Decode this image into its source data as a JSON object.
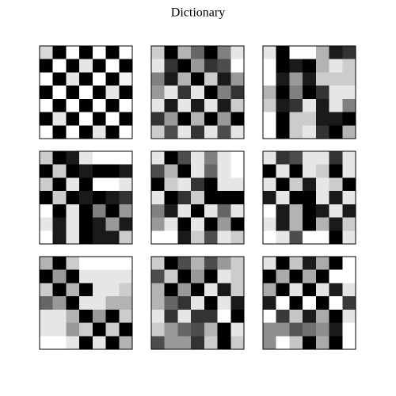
{
  "title": "Dictionary",
  "chart_data": [
    {
      "type": "heatmap",
      "colormap": "gray",
      "values": [
        [
          0.85,
          0.0,
          1.0,
          0.0,
          1.0,
          0.0,
          1.0
        ],
        [
          0.0,
          1.0,
          0.0,
          0.9,
          0.0,
          1.0,
          0.0
        ],
        [
          1.0,
          0.0,
          0.9,
          0.0,
          1.0,
          0.0,
          0.95
        ],
        [
          0.0,
          1.0,
          0.0,
          1.0,
          0.0,
          0.9,
          0.0
        ],
        [
          1.0,
          0.0,
          1.0,
          0.0,
          1.0,
          0.0,
          1.0
        ],
        [
          0.0,
          0.9,
          0.0,
          1.0,
          0.0,
          1.0,
          0.0
        ],
        [
          1.0,
          0.0,
          1.0,
          0.0,
          0.9,
          0.0,
          1.0
        ]
      ]
    },
    {
      "type": "heatmap",
      "colormap": "gray",
      "values": [
        [
          0.8,
          0.0,
          0.7,
          0.4,
          0.0,
          0.5,
          0.9
        ],
        [
          0.9,
          0.2,
          0.0,
          0.6,
          0.2,
          0.3,
          1.0
        ],
        [
          0.5,
          0.1,
          0.7,
          0.0,
          0.8,
          0.1,
          0.6
        ],
        [
          0.6,
          0.9,
          0.2,
          0.9,
          0.0,
          0.5,
          0.2
        ],
        [
          0.9,
          0.1,
          0.9,
          0.1,
          0.9,
          0.1,
          0.8
        ],
        [
          0.2,
          0.6,
          0.0,
          0.7,
          0.0,
          0.6,
          0.0
        ],
        [
          0.8,
          0.3,
          0.9,
          0.2,
          0.9,
          0.3,
          0.9
        ]
      ]
    },
    {
      "type": "heatmap",
      "colormap": "gray",
      "values": [
        [
          0.9,
          0.0,
          1.0,
          1.0,
          0.7,
          0.1,
          0.2
        ],
        [
          1.0,
          0.0,
          0.1,
          0.0,
          0.7,
          0.9,
          0.8
        ],
        [
          1.0,
          0.1,
          0.6,
          0.1,
          0.8,
          0.8,
          0.8
        ],
        [
          0.7,
          0.0,
          0.5,
          0.0,
          0.2,
          0.9,
          0.9
        ],
        [
          0.8,
          0.1,
          0.2,
          0.9,
          0.1,
          0.9,
          0.5
        ],
        [
          1.0,
          0.0,
          0.8,
          0.8,
          0.1,
          0.1,
          0.0
        ],
        [
          1.0,
          0.0,
          0.8,
          0.9,
          0.2,
          0.0,
          0.7
        ]
      ]
    },
    {
      "type": "heatmap",
      "colormap": "gray",
      "values": [
        [
          0.8,
          0.0,
          0.1,
          0.9,
          1.0,
          1.0,
          1.0
        ],
        [
          0.0,
          0.8,
          0.0,
          0.1,
          0.0,
          0.0,
          0.1
        ],
        [
          0.8,
          0.0,
          0.9,
          0.0,
          1.0,
          1.0,
          0.9
        ],
        [
          0.0,
          0.8,
          0.0,
          0.1,
          0.0,
          0.1,
          0.2
        ],
        [
          1.0,
          0.0,
          0.9,
          0.0,
          0.5,
          0.0,
          0.6
        ],
        [
          0.9,
          0.1,
          0.9,
          0.0,
          0.1,
          0.6,
          0.1
        ],
        [
          1.0,
          0.1,
          0.9,
          0.0,
          0.1,
          0.1,
          0.8
        ]
      ]
    },
    {
      "type": "heatmap",
      "colormap": "gray",
      "values": [
        [
          0.9,
          0.0,
          0.3,
          0.9,
          0.5,
          0.9,
          1.0
        ],
        [
          0.3,
          0.7,
          0.0,
          0.9,
          0.4,
          0.9,
          1.0
        ],
        [
          0.0,
          0.8,
          0.9,
          0.2,
          0.0,
          0.9,
          0.9
        ],
        [
          0.9,
          0.0,
          0.2,
          0.8,
          0.0,
          0.0,
          0.0
        ],
        [
          0.5,
          0.1,
          0.9,
          0.0,
          0.9,
          0.4,
          0.9
        ],
        [
          0.6,
          0.9,
          0.0,
          0.9,
          0.0,
          0.6,
          0.0
        ],
        [
          1.0,
          1.0,
          0.1,
          0.8,
          0.3,
          0.9,
          0.8
        ]
      ]
    },
    {
      "type": "heatmap",
      "colormap": "gray",
      "values": [
        [
          0.9,
          0.2,
          0.3,
          0.9,
          0.9,
          0.2,
          0.9
        ],
        [
          0.0,
          0.9,
          0.0,
          0.9,
          0.8,
          0.0,
          0.9
        ],
        [
          0.9,
          0.0,
          0.8,
          0.1,
          0.9,
          0.8,
          0.0
        ],
        [
          0.1,
          0.9,
          0.0,
          0.0,
          0.9,
          0.1,
          0.9
        ],
        [
          1.0,
          0.1,
          0.7,
          0.0,
          0.1,
          0.9,
          0.1
        ],
        [
          0.9,
          0.1,
          0.7,
          0.0,
          0.7,
          0.1,
          0.8
        ],
        [
          1.0,
          0.9,
          0.3,
          1.0,
          1.0,
          0.0,
          0.9
        ]
      ]
    },
    {
      "type": "heatmap",
      "colormap": "gray",
      "values": [
        [
          0.7,
          0.0,
          0.8,
          1.0,
          1.0,
          1.0,
          1.0
        ],
        [
          0.0,
          0.6,
          0.0,
          0.9,
          0.9,
          0.9,
          0.9
        ],
        [
          0.8,
          0.0,
          0.7,
          0.0,
          0.9,
          0.9,
          0.8
        ],
        [
          0.4,
          0.6,
          0.0,
          0.9,
          0.9,
          0.7,
          0.7
        ],
        [
          0.9,
          0.9,
          0.7,
          0.0,
          0.6,
          0.0,
          0.8
        ],
        [
          0.9,
          0.9,
          0.6,
          0.8,
          0.0,
          0.8,
          0.0
        ],
        [
          1.0,
          1.0,
          0.9,
          0.0,
          0.9,
          0.0,
          0.7
        ]
      ]
    },
    {
      "type": "heatmap",
      "colormap": "gray",
      "values": [
        [
          0.8,
          0.0,
          0.3,
          0.7,
          0.3,
          0.6,
          0.8
        ],
        [
          0.3,
          0.8,
          0.0,
          0.6,
          0.0,
          0.9,
          0.8
        ],
        [
          0.7,
          0.0,
          0.6,
          0.0,
          0.9,
          0.1,
          0.8
        ],
        [
          0.7,
          0.4,
          0.2,
          0.9,
          0.0,
          0.9,
          0.1
        ],
        [
          0.9,
          0.2,
          0.9,
          0.2,
          0.2,
          1.0,
          0.0
        ],
        [
          0.8,
          0.6,
          0.4,
          0.3,
          0.7,
          0.0,
          0.9
        ],
        [
          0.3,
          0.6,
          0.6,
          0.2,
          0.8,
          0.0,
          0.8
        ]
      ]
    },
    {
      "type": "heatmap",
      "colormap": "gray",
      "values": [
        [
          0.8,
          0.0,
          0.7,
          0.1,
          0.6,
          0.0,
          0.9
        ],
        [
          0.0,
          0.6,
          0.0,
          0.6,
          0.0,
          0.9,
          0.9
        ],
        [
          0.6,
          0.0,
          0.8,
          0.0,
          0.8,
          0.1,
          0.8
        ],
        [
          0.1,
          0.9,
          0.0,
          0.9,
          0.0,
          0.9,
          0.2
        ],
        [
          0.9,
          0.2,
          0.7,
          0.1,
          0.6,
          0.0,
          0.8
        ],
        [
          0.5,
          0.5,
          0.3,
          0.4,
          0.5,
          0.1,
          0.9
        ],
        [
          0.5,
          0.9,
          0.7,
          0.0,
          0.6,
          0.0,
          0.9
        ]
      ]
    }
  ]
}
